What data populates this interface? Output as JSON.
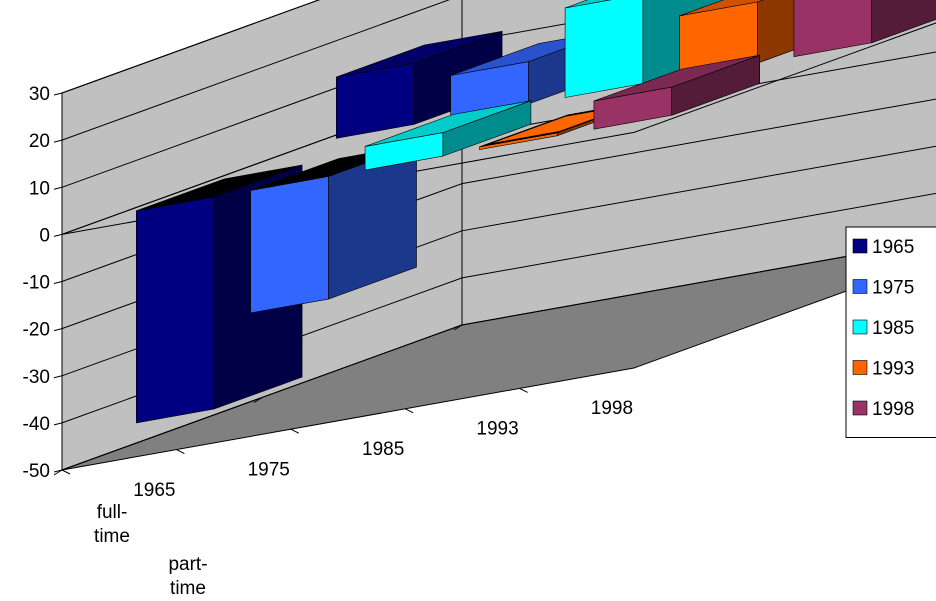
{
  "chart_data": {
    "type": "bar",
    "title": "",
    "xlabel": "",
    "ylabel": "",
    "ylim": [
      -50,
      30
    ],
    "yticks": [
      "30",
      "20",
      "10",
      "0",
      "-10",
      "-20",
      "-30",
      "-40",
      "-50"
    ],
    "categories": [
      "full-time",
      "part-time"
    ],
    "depth_labels": [
      "1965",
      "1975",
      "1985",
      "1993",
      "1998"
    ],
    "grid": true,
    "legend_position": "right",
    "colors": {
      "wall": "#c0c0c0",
      "floor": "#808080",
      "s1965": "#000080",
      "s1975": "#3366ff",
      "s1985": "#00ffff",
      "s1993": "#ff6600",
      "s1998": "#993366",
      "top_negative": "#000000"
    },
    "series": [
      {
        "name": "1965",
        "values": [
          13,
          -45
        ]
      },
      {
        "name": "1975",
        "values": [
          9,
          -26
        ]
      },
      {
        "name": "1985",
        "values": [
          19,
          5
        ]
      },
      {
        "name": "1993",
        "values": [
          13,
          0
        ]
      },
      {
        "name": "1998",
        "values": [
          17,
          6
        ]
      }
    ]
  }
}
